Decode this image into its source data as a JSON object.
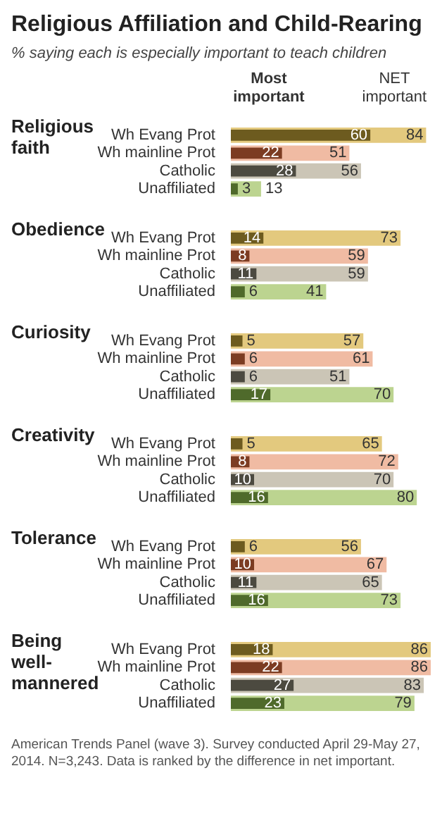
{
  "chart_data": [
    {
      "type": "bar",
      "orientation": "horizontal",
      "title": "Religious Affiliation and Child-Rearing",
      "subtitle": "% saying each is especially  important to teach children",
      "ylabel": "Religious faith",
      "categories": [
        "Wh Evang Prot",
        "Wh mainline Prot",
        "Catholic",
        "Unaffiliated"
      ],
      "tick_labels": "y",
      "data_labels": true,
      "series": [
        {
          "name": "Most important",
          "colors": [
            "#6d5b1f",
            "#7c3c22",
            "#4c4a40",
            "#4f6a2b"
          ],
          "values": [
            60,
            22,
            28,
            3
          ]
        },
        {
          "name": "NET important",
          "colors": [
            "#e3c97e",
            "#f0bba3",
            "#cbc5b6",
            "#bcd490"
          ],
          "values": [
            84,
            51,
            56,
            13
          ]
        }
      ]
    },
    {
      "type": "bar",
      "orientation": "horizontal",
      "ylabel": "Obedience",
      "categories": [
        "Wh Evang Prot",
        "Wh mainline Prot",
        "Catholic",
        "Unaffiliated"
      ],
      "tick_labels": "y",
      "data_labels": true,
      "series": [
        {
          "colors": [
            "#6d5b1f",
            "#7c3c22",
            "#4c4a40",
            "#4f6a2b"
          ],
          "values": [
            14,
            8,
            11,
            6
          ]
        },
        {
          "colors": [
            "#e3c97e",
            "#f0bba3",
            "#cbc5b6",
            "#bcd490"
          ],
          "values": [
            73,
            59,
            59,
            41
          ]
        }
      ]
    },
    {
      "type": "bar",
      "orientation": "horizontal",
      "ylabel": "Curiosity",
      "categories": [
        "Wh Evang Prot",
        "Wh mainline Prot",
        "Catholic",
        "Unaffiliated"
      ],
      "tick_labels": "y",
      "data_labels": true,
      "series": [
        {
          "colors": [
            "#6d5b1f",
            "#7c3c22",
            "#4c4a40",
            "#4f6a2b"
          ],
          "values": [
            5,
            6,
            6,
            17
          ]
        },
        {
          "colors": [
            "#e3c97e",
            "#f0bba3",
            "#cbc5b6",
            "#bcd490"
          ],
          "values": [
            57,
            61,
            51,
            70
          ]
        }
      ]
    },
    {
      "type": "bar",
      "orientation": "horizontal",
      "ylabel": "Creativity",
      "categories": [
        "Wh Evang Prot",
        "Wh mainline Prot",
        "Catholic",
        "Unaffiliated"
      ],
      "tick_labels": "y",
      "data_labels": true,
      "series": [
        {
          "colors": [
            "#6d5b1f",
            "#7c3c22",
            "#4c4a40",
            "#4f6a2b"
          ],
          "values": [
            5,
            8,
            10,
            16
          ]
        },
        {
          "colors": [
            "#e3c97e",
            "#f0bba3",
            "#cbc5b6",
            "#bcd490"
          ],
          "values": [
            65,
            72,
            70,
            80
          ]
        }
      ]
    },
    {
      "type": "bar",
      "orientation": "horizontal",
      "ylabel": "Tolerance",
      "categories": [
        "Wh Evang Prot",
        "Wh mainline Prot",
        "Catholic",
        "Unaffiliated"
      ],
      "tick_labels": "y",
      "data_labels": true,
      "series": [
        {
          "colors": [
            "#6d5b1f",
            "#7c3c22",
            "#4c4a40",
            "#4f6a2b"
          ],
          "values": [
            6,
            10,
            11,
            16
          ]
        },
        {
          "colors": [
            "#e3c97e",
            "#f0bba3",
            "#cbc5b6",
            "#bcd490"
          ],
          "values": [
            56,
            67,
            65,
            73
          ]
        }
      ]
    },
    {
      "type": "bar",
      "orientation": "horizontal",
      "ylabel": "Being well-mannered",
      "categories": [
        "Wh Evang Prot",
        "Wh mainline Prot",
        "Catholic",
        "Unaffiliated"
      ],
      "tick_labels": "y",
      "data_labels": true,
      "annotations": [
        "American Trends Panel (wave 3). Survey conducted April 29-May 27, 2014. N=3,243.  Data is ranked by the difference in net important."
      ],
      "series": [
        {
          "colors": [
            "#6d5b1f",
            "#7c3c22",
            "#4c4a40",
            "#4f6a2b"
          ],
          "values": [
            18,
            22,
            27,
            23
          ]
        },
        {
          "colors": [
            "#e3c97e",
            "#f0bba3",
            "#cbc5b6",
            "#bcd490"
          ],
          "values": [
            86,
            86,
            83,
            79
          ]
        }
      ]
    }
  ]
}
